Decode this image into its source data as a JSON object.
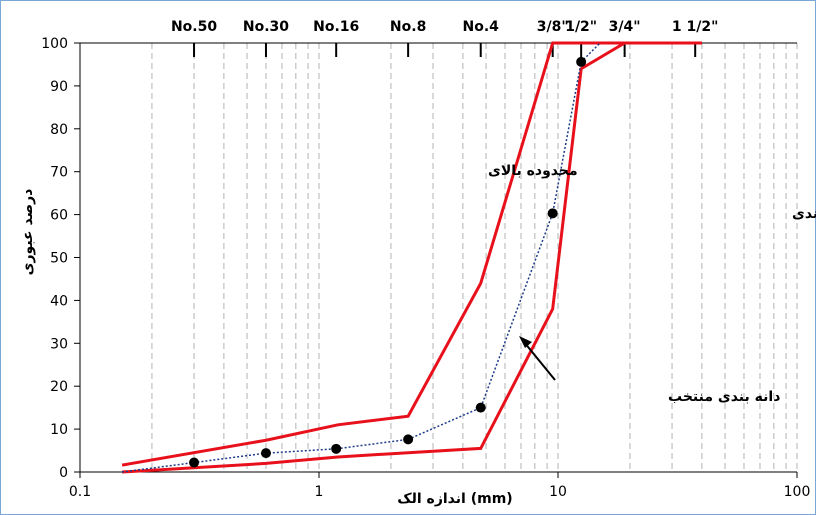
{
  "chart_data": {
    "type": "line",
    "xlabel": "(mm) اندازه الک",
    "ylabel": "درصد عبوری",
    "xscale": "log",
    "xlim": [
      0.1,
      100
    ],
    "ylim": [
      0,
      100
    ],
    "x_ticks": [
      {
        "value": 0.1,
        "label": "0.1"
      },
      {
        "value": 1,
        "label": "1"
      },
      {
        "value": 10,
        "label": "10"
      },
      {
        "value": 100,
        "label": "100"
      }
    ],
    "y_ticks": [
      0,
      10,
      20,
      30,
      40,
      50,
      60,
      70,
      80,
      90,
      100
    ],
    "sieve_ticks": [
      {
        "label": "No.50",
        "value": 0.3
      },
      {
        "label": "No.30",
        "value": 0.6
      },
      {
        "label": "No.16",
        "value": 1.18
      },
      {
        "label": "No.8",
        "value": 2.36
      },
      {
        "label": "No.4",
        "value": 4.75
      },
      {
        "label": "3/8\"",
        "value": 9.5
      },
      {
        "label": "1/2\"",
        "value": 12.5
      },
      {
        "label": "3/4\"",
        "value": 19
      },
      {
        "label": "1 1/2\"",
        "value": 37.5
      }
    ],
    "grid": "vertical-dashed",
    "series": [
      {
        "name": "محدوده بالای",
        "color": "#e8111b",
        "style": "solid",
        "points": [
          [
            0.15,
            1.6
          ],
          [
            0.6,
            7.4
          ],
          [
            1.2,
            11
          ],
          [
            2.36,
            13
          ],
          [
            4.75,
            44
          ],
          [
            9.5,
            100
          ],
          [
            12.5,
            100
          ],
          [
            40,
            100
          ]
        ]
      },
      {
        "name": "محدوده پایین دانه‌بندی",
        "color": "#e8111b",
        "style": "solid",
        "points": [
          [
            0.15,
            0
          ],
          [
            0.6,
            2
          ],
          [
            1.2,
            3.5
          ],
          [
            2.36,
            4.5
          ],
          [
            4.75,
            5.5
          ],
          [
            9.5,
            38
          ],
          [
            12.5,
            94
          ],
          [
            19,
            100
          ],
          [
            40,
            100
          ]
        ]
      },
      {
        "name": "دانه بندی منتخب",
        "color": "#1c3b88",
        "style": "dotted",
        "markers": true,
        "points": [
          [
            0.15,
            0
          ],
          [
            0.3,
            2.2
          ],
          [
            0.6,
            4.4
          ],
          [
            1.18,
            5.4
          ],
          [
            2.36,
            7.6
          ],
          [
            4.75,
            15
          ],
          [
            9.5,
            60.3
          ],
          [
            12.5,
            95.6
          ],
          [
            15,
            100
          ]
        ]
      }
    ],
    "annotations": [
      {
        "text": "محدوده بالای",
        "target_series": 0
      },
      {
        "text": "محدوده پایین دانه‌بندی",
        "target_series": 1
      },
      {
        "text": "دانه بندی منتخب",
        "target_series": 2
      }
    ]
  }
}
